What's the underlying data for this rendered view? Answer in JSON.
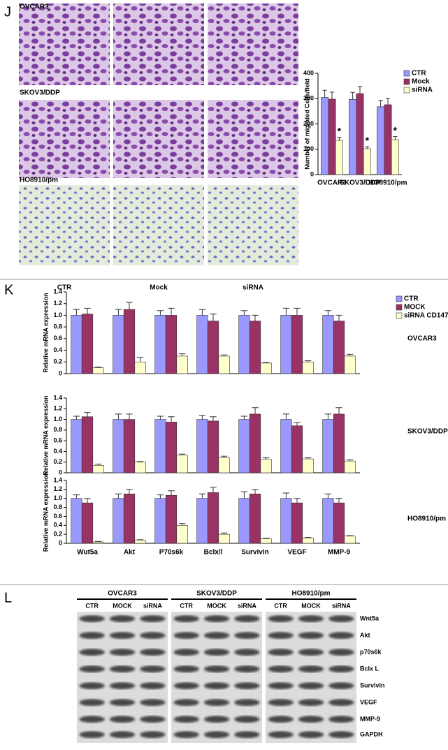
{
  "panel_labels": [
    "J",
    "K",
    "L"
  ],
  "micrographs": {
    "rows": [
      "OVCAR3",
      "SKOV3/DDP",
      "HO8910/pm"
    ],
    "columns": [
      "CTR",
      "Mock",
      "siRNA"
    ],
    "column_colors": [
      "#3333cc",
      "#993399",
      "#f59a3c"
    ]
  },
  "chart_data": [
    {
      "type": "bar",
      "y_label": "Number of migrated Cells/field",
      "categories": [
        "OVCAR3",
        "SKOV3/DDP",
        "HO8910/pm"
      ],
      "series": [
        {
          "name": "CTR",
          "color": "#9999ff",
          "values": [
            305,
            297,
            268
          ],
          "errors": [
            28,
            28,
            25
          ]
        },
        {
          "name": "Mock",
          "color": "#993366",
          "values": [
            298,
            320,
            276
          ],
          "errors": [
            28,
            28,
            25
          ]
        },
        {
          "name": "siRNA",
          "color": "#ffffcc",
          "values": [
            135,
            102,
            138
          ],
          "errors": [
            12,
            8,
            12
          ]
        }
      ],
      "annotations": [
        "*",
        "*",
        "*"
      ],
      "ylim": [
        0,
        400
      ],
      "yticks": [
        0,
        100,
        200,
        300,
        400
      ]
    },
    {
      "type": "bar",
      "y_label": "Relative mRNA expression",
      "subtitle": "OVCAR3",
      "categories": [
        null,
        null,
        null,
        null,
        null,
        null,
        null
      ],
      "series": [
        {
          "name": "CTR",
          "color": "#9999ff",
          "values": [
            1.0,
            1.0,
            1.0,
            1.0,
            1.0,
            1.0,
            1.0
          ],
          "errors": [
            0.1,
            0.1,
            0.08,
            0.1,
            0.08,
            0.12,
            0.08
          ]
        },
        {
          "name": "MOCK",
          "color": "#993366",
          "values": [
            1.02,
            1.1,
            1.0,
            0.9,
            0.9,
            1.0,
            0.9
          ],
          "errors": [
            0.1,
            0.12,
            0.12,
            0.12,
            0.1,
            0.12,
            0.1
          ]
        },
        {
          "name": "siRNA CD147",
          "color": "#ffffcc",
          "values": [
            0.1,
            0.2,
            0.3,
            0.3,
            0.18,
            0.2,
            0.3
          ],
          "errors": [
            0.01,
            0.08,
            0.04,
            0.02,
            0.01,
            0.02,
            0.03
          ]
        }
      ],
      "ylim": [
        0,
        1.4
      ],
      "yticks": [
        0,
        0.2,
        0.4,
        0.6,
        0.8,
        {
          "value": 1,
          "label": "1.0"
        },
        1.2,
        1.4
      ]
    },
    {
      "type": "bar",
      "y_label": "Relative mRNA expression",
      "subtitle": "SKOV3/DDP",
      "categories": [
        null,
        null,
        null,
        null,
        null,
        null,
        null
      ],
      "series": [
        {
          "color": "#9999ff",
          "values": [
            1.0,
            1.0,
            1.0,
            1.0,
            1.0,
            1.0,
            1.0
          ],
          "errors": [
            0.06,
            0.1,
            0.06,
            0.08,
            0.06,
            0.1,
            0.1
          ]
        },
        {
          "color": "#993366",
          "values": [
            1.05,
            1.0,
            0.95,
            0.97,
            1.1,
            0.88,
            1.1
          ],
          "errors": [
            0.08,
            0.1,
            0.1,
            0.08,
            0.12,
            0.06,
            0.12
          ]
        },
        {
          "color": "#ffffcc",
          "values": [
            0.14,
            0.2,
            0.33,
            0.28,
            0.25,
            0.26,
            0.22
          ],
          "errors": [
            0.02,
            0.01,
            0.02,
            0.03,
            0.03,
            0.02,
            0.02
          ]
        }
      ],
      "ylim": [
        0,
        1.4
      ],
      "yticks": [
        0,
        0.2,
        0.4,
        0.6,
        0.8,
        {
          "value": 1,
          "label": "1.0"
        },
        1.2,
        1.4
      ]
    },
    {
      "type": "bar",
      "y_label": "Relative mRNA expression",
      "subtitle": "HO8910/pm",
      "categories": [
        "Wut5a",
        "Akt",
        "P70s6k",
        "Bclx/l",
        "Survivin",
        "VEGF",
        "MMP-9"
      ],
      "series": [
        {
          "color": "#9999ff",
          "values": [
            1.0,
            1.0,
            1.0,
            1.0,
            1.0,
            1.0,
            1.0
          ],
          "errors": [
            0.08,
            0.1,
            0.08,
            0.1,
            0.15,
            0.12,
            0.1
          ]
        },
        {
          "color": "#993366",
          "values": [
            0.9,
            1.1,
            1.07,
            1.13,
            1.1,
            0.9,
            0.9
          ],
          "errors": [
            0.1,
            0.1,
            0.1,
            0.12,
            0.1,
            0.1,
            0.1
          ]
        },
        {
          "color": "#ffffcc",
          "values": [
            0.03,
            0.07,
            0.4,
            0.2,
            0.1,
            0.12,
            0.16
          ],
          "errors": [
            0.01,
            0.01,
            0.04,
            0.03,
            0.01,
            0.01,
            0.01
          ]
        }
      ],
      "ylim": [
        0,
        1.4
      ],
      "yticks": [
        0,
        0.2,
        0.4,
        0.6,
        0.8,
        {
          "value": 1,
          "label": "1.0"
        },
        1.2,
        1.4
      ]
    }
  ],
  "blot": {
    "groups": [
      "OVCAR3",
      "SKOV3/DDP",
      "HO8910/pm"
    ],
    "lanes": [
      "CTR",
      "MOCK",
      "siRNA"
    ],
    "proteins": [
      "Wnt5a",
      "Akt",
      "p70s6k",
      "Bclx L",
      "Survivin",
      "VEGF",
      "MMP-9",
      "GAPDH"
    ]
  }
}
